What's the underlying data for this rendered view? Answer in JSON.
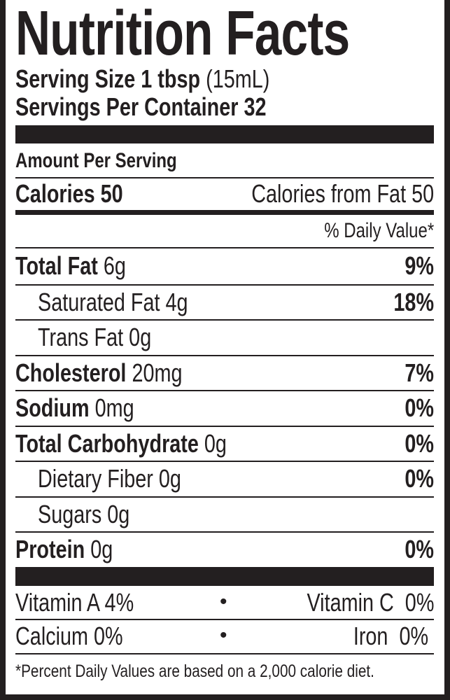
{
  "title": "Nutrition Facts",
  "serving_size": {
    "label": "Serving Size 1 tbsp",
    "unit": "(15mL)"
  },
  "servings_per_container": "Servings Per Container 32",
  "amount_per_serving": "Amount Per Serving",
  "calories": {
    "label": "Calories 50",
    "from_fat": "Calories from Fat 50"
  },
  "daily_value_header": "% Daily Value*",
  "nutrients": [
    {
      "name": "Total Fat",
      "amount": "6g",
      "dv": "9%",
      "bold": true
    },
    {
      "name": "Saturated Fat",
      "amount": "4g",
      "dv": "18%",
      "bold": false
    },
    {
      "name": "Trans Fat",
      "amount": "0g",
      "dv": "",
      "bold": false
    },
    {
      "name": "Cholesterol",
      "amount": "20mg",
      "dv": "7%",
      "bold": true
    },
    {
      "name": "Sodium",
      "amount": "0mg",
      "dv": "0%",
      "bold": true
    },
    {
      "name": "Total Carbohydrate",
      "amount": "0g",
      "dv": "0%",
      "bold": true
    },
    {
      "name": "Dietary Fiber",
      "amount": "0g",
      "dv": "0%",
      "bold": false
    },
    {
      "name": "Sugars",
      "amount": "0g",
      "dv": "",
      "bold": false
    },
    {
      "name": "Protein",
      "amount": "0g",
      "dv": "0%",
      "bold": true
    }
  ],
  "vitamins": [
    {
      "left": "Vitamin A 4%",
      "sep": "•",
      "right": "Vitamin C  0%"
    },
    {
      "left": "Calcium 0%",
      "sep": "•",
      "right": "Iron  0%"
    }
  ],
  "footnote": "*Percent Daily Values are based on a 2,000 calorie diet."
}
